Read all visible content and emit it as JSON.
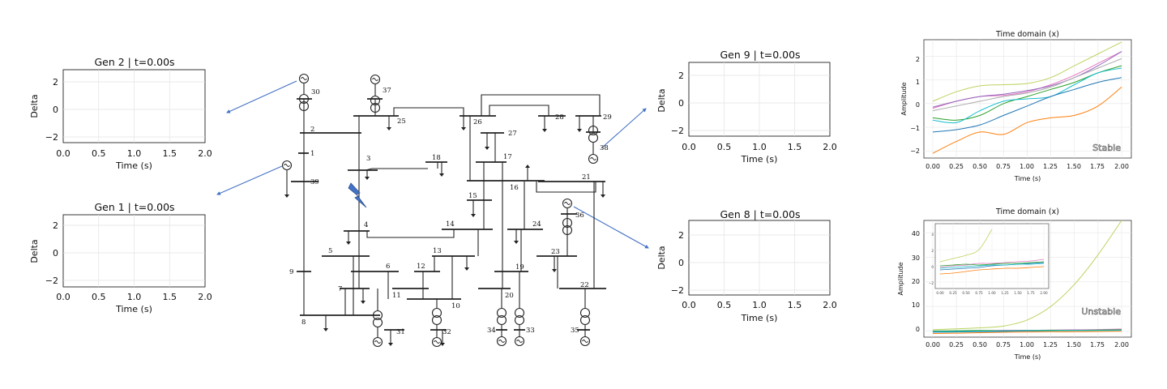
{
  "accent_color": "#4472c4",
  "fault_icon": "lightning-bolt-icon",
  "delta_plots": [
    {
      "id": "gen2",
      "title": "Gen 2 | t=0.00s",
      "xlabel": "Time (s)",
      "ylabel": "Delta",
      "xlim": [
        0,
        2
      ],
      "ylim": [
        -2.4,
        2.9
      ],
      "xticks": [
        "0.0",
        "0.5",
        "1.0",
        "1.5",
        "2.0"
      ],
      "yticks": [
        "2",
        "0",
        "−2"
      ]
    },
    {
      "id": "gen1",
      "title": "Gen 1 | t=0.00s",
      "xlabel": "Time (s)",
      "ylabel": "Delta",
      "xlim": [
        0,
        2
      ],
      "ylim": [
        -2.4,
        2.9
      ],
      "xticks": [
        "0.0",
        "0.5",
        "1.0",
        "1.5",
        "2.0"
      ],
      "yticks": [
        "2",
        "0",
        "−2"
      ]
    },
    {
      "id": "gen9",
      "title": "Gen 9 | t=0.00s",
      "xlabel": "Time (s)",
      "ylabel": "Delta",
      "xlim": [
        0,
        2
      ],
      "ylim": [
        -2.4,
        2.9
      ],
      "xticks": [
        "0.0",
        "0.5",
        "1.0",
        "1.5",
        "2.0"
      ],
      "yticks": [
        "2",
        "0",
        "−2"
      ]
    },
    {
      "id": "gen8",
      "title": "Gen 8 | t=0.00s",
      "xlabel": "Time (s)",
      "ylabel": "Delta",
      "xlim": [
        0,
        2
      ],
      "ylim": [
        -2.4,
        2.9
      ],
      "xticks": [
        "0.0",
        "0.5",
        "1.0",
        "1.5",
        "2.0"
      ],
      "yticks": [
        "2",
        "0",
        "−2"
      ]
    }
  ],
  "time_plots": [
    {
      "id": "stable",
      "title": "Time domain (x)",
      "xlabel": "Time (s)",
      "ylabel": "Amplitude",
      "tag": "Stable",
      "xticks": [
        "0.00",
        "0.25",
        "0.50",
        "0.75",
        "1.00",
        "1.25",
        "1.50",
        "1.75",
        "2.00"
      ],
      "yticks": [
        "2",
        "1",
        "0",
        "−1",
        "−2"
      ]
    },
    {
      "id": "unstable",
      "title": "Time domain (x)",
      "xlabel": "Time (s)",
      "ylabel": "Amplitude",
      "tag": "Unstable",
      "xticks": [
        "0.00",
        "0.25",
        "0.50",
        "0.75",
        "1.00",
        "1.25",
        "1.50",
        "1.75",
        "2.00"
      ],
      "yticks": [
        "40",
        "30",
        "20",
        "10",
        "0"
      ],
      "inset_xticks": [
        "0.00",
        "0.25",
        "0.50",
        "0.75",
        "1.00",
        "1.25",
        "1.50",
        "1.75",
        "2.00"
      ],
      "inset_yticks": [
        "4",
        "2",
        "0",
        "−2"
      ]
    }
  ],
  "chart_data": [
    {
      "type": "line",
      "title": "Time domain (x)",
      "xlabel": "Time (s)",
      "ylabel": "Amplitude",
      "xlim": [
        0,
        2
      ],
      "ylim": [
        -2.3,
        2.7
      ],
      "grid": true,
      "x": [
        0,
        0.25,
        0.5,
        0.75,
        1.0,
        1.25,
        1.5,
        1.75,
        2.0
      ],
      "series": [
        {
          "color": "#bcd35f",
          "values": [
            0.1,
            0.5,
            0.75,
            0.8,
            0.85,
            1.1,
            1.6,
            2.1,
            2.6
          ]
        },
        {
          "color": "#e377c2",
          "values": [
            -0.2,
            0.1,
            0.3,
            0.35,
            0.5,
            0.8,
            1.2,
            1.7,
            2.2
          ]
        },
        {
          "color": "#9467bd",
          "values": [
            -0.15,
            0.1,
            0.3,
            0.4,
            0.55,
            0.75,
            1.1,
            1.6,
            2.2
          ]
        },
        {
          "color": "#aaaaaa",
          "values": [
            -0.3,
            -0.1,
            0.1,
            0.3,
            0.45,
            0.7,
            1.1,
            1.5,
            1.9
          ]
        },
        {
          "color": "#2ca02c",
          "values": [
            -0.6,
            -0.7,
            -0.5,
            0.0,
            0.3,
            0.6,
            0.9,
            1.3,
            1.6
          ]
        },
        {
          "color": "#17becf",
          "values": [
            -0.7,
            -0.8,
            -0.3,
            0.1,
            0.2,
            0.3,
            0.8,
            1.3,
            1.5
          ]
        },
        {
          "color": "#1f77b4",
          "values": [
            -1.2,
            -1.1,
            -0.9,
            -0.5,
            -0.1,
            0.3,
            0.6,
            0.9,
            1.1
          ]
        },
        {
          "color": "#ff7f0e",
          "values": [
            -2.1,
            -1.6,
            -1.2,
            -1.3,
            -0.8,
            -0.6,
            -0.5,
            -0.1,
            0.7
          ]
        }
      ]
    },
    {
      "type": "line",
      "title": "Time domain (x)",
      "xlabel": "Time (s)",
      "ylabel": "Amplitude",
      "xlim": [
        0,
        2
      ],
      "ylim": [
        -2.5,
        45
      ],
      "grid": true,
      "x": [
        0,
        0.25,
        0.5,
        0.75,
        1.0,
        1.25,
        1.5,
        1.75,
        2.0
      ],
      "series": [
        {
          "color": "#bcd35f",
          "values": [
            0.5,
            0.9,
            1.3,
            2.0,
            4.5,
            10,
            19,
            31,
            45
          ]
        },
        {
          "color": "#e377c2",
          "values": [
            -0.2,
            0.0,
            0.1,
            0.3,
            0.3,
            0.4,
            0.5,
            0.6,
            0.8
          ]
        },
        {
          "color": "#1f77b4",
          "values": [
            -0.5,
            -0.4,
            -0.3,
            -0.2,
            0.0,
            0.1,
            0.2,
            0.3,
            0.4
          ]
        },
        {
          "color": "#ff7f0e",
          "values": [
            -1.0,
            -0.9,
            -0.7,
            -0.5,
            -0.4,
            -0.3,
            -0.3,
            -0.2,
            -0.1
          ]
        },
        {
          "color": "#2ca02c",
          "values": [
            0.0,
            0.1,
            0.2,
            0.1,
            0.2,
            0.3,
            0.3,
            0.4,
            0.5
          ]
        },
        {
          "color": "#17becf",
          "values": [
            -0.3,
            -0.2,
            -0.1,
            0.0,
            0.1,
            0.1,
            0.2,
            0.2,
            0.3
          ]
        }
      ]
    }
  ],
  "diagram": {
    "bus_labels": [
      "1",
      "2",
      "3",
      "4",
      "5",
      "6",
      "7",
      "8",
      "9",
      "10",
      "11",
      "12",
      "13",
      "14",
      "15",
      "16",
      "17",
      "18",
      "19",
      "20",
      "21",
      "22",
      "23",
      "24",
      "25",
      "26",
      "27",
      "28",
      "29"
    ],
    "generator_labels": [
      "30",
      "31",
      "32",
      "33",
      "34",
      "35",
      "36",
      "37",
      "38",
      "39"
    ]
  }
}
